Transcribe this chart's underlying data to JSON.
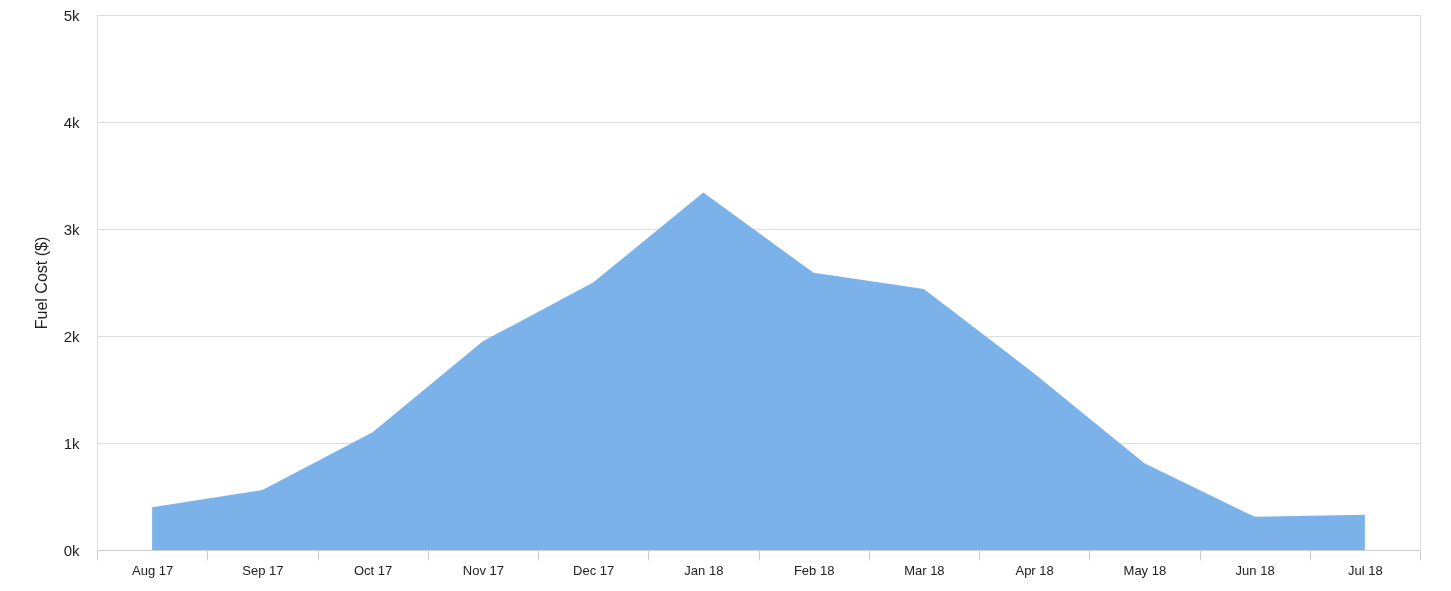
{
  "chart_data": {
    "type": "area",
    "ylabel": "Fuel Cost ($)",
    "categories": [
      "Aug 17",
      "Sep 17",
      "Oct 17",
      "Nov 17",
      "Dec 17",
      "Jan 18",
      "Feb 18",
      "Mar 18",
      "Apr 18",
      "May 18",
      "Jun 18",
      "Jul 18"
    ],
    "values": [
      400,
      560,
      1100,
      1950,
      2500,
      3340,
      2590,
      2440,
      1650,
      810,
      310,
      330
    ],
    "color": "#7ab2e9",
    "ylim": [
      0,
      5000
    ],
    "yticks": [
      {
        "value": 0,
        "label": "0k"
      },
      {
        "value": 1000,
        "label": "1k"
      },
      {
        "value": 2000,
        "label": "2k"
      },
      {
        "value": 3000,
        "label": "3k"
      },
      {
        "value": 4000,
        "label": "4k"
      },
      {
        "value": 5000,
        "label": "5k"
      }
    ],
    "grid": "y"
  }
}
